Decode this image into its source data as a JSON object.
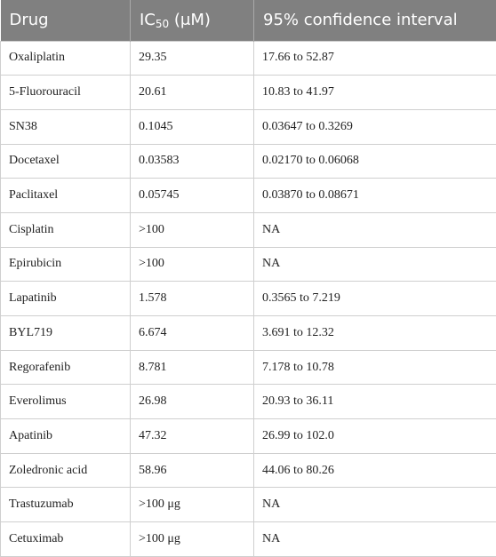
{
  "table": {
    "header": [
      "Drug",
      {
        "text": "IC",
        "sub": "50",
        "rest": " (μM)"
      },
      "95% confidence interval"
    ],
    "rows": [
      [
        "Oxaliplatin",
        "29.35",
        "17.66 to 52.87"
      ],
      [
        "5-Fluorouracil",
        "20.61",
        "10.83 to 41.97"
      ],
      [
        "SN38",
        "0.1045",
        "0.03647 to 0.3269"
      ],
      [
        "Docetaxel",
        "0.03583",
        "0.02170 to 0.06068"
      ],
      [
        "Paclitaxel",
        "0.05745",
        "0.03870 to 0.08671"
      ],
      [
        "Cisplatin",
        ">100",
        "NA"
      ],
      [
        "Epirubicin",
        ">100",
        "NA"
      ],
      [
        "Lapatinib",
        "1.578",
        "0.3565 to 7.219"
      ],
      [
        "BYL719",
        "6.674",
        "3.691 to 12.32"
      ],
      [
        "Regorafenib",
        "8.781",
        "7.178 to 10.78"
      ],
      [
        "Everolimus",
        "26.98",
        "20.93 to 36.11"
      ],
      [
        "Apatinib",
        "47.32",
        "26.99 to 102.0"
      ],
      [
        "Zoledronic acid",
        "58.96",
        "44.06 to 80.26"
      ],
      [
        "Trastuzumab",
        ">100 μg",
        "NA"
      ],
      [
        "Cetuximab",
        ">100 μg",
        "NA"
      ]
    ]
  }
}
